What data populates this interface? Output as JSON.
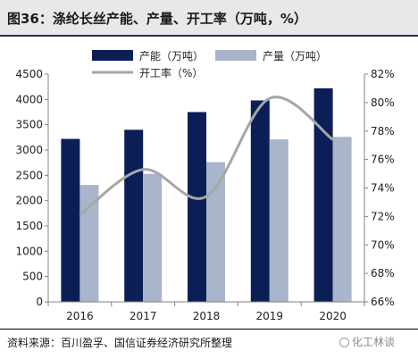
{
  "title": "图36：涤纶长丝产能、产量、开工率（万吨，%）",
  "source": "资料来源：百川盈孚、国信证券经济研究所整理",
  "watermark": "化工林谈",
  "colors": {
    "capacity": "#0b1f56",
    "output": "#a8b5cb",
    "rate": "#a6a6a6",
    "axis": "#808080"
  },
  "chart_data": {
    "type": "bar",
    "categories": [
      "2016",
      "2017",
      "2018",
      "2019",
      "2020"
    ],
    "series": [
      {
        "name": "产能（万吨）",
        "type": "bar",
        "axis": "left",
        "values": [
          3220,
          3400,
          3750,
          3980,
          4220
        ]
      },
      {
        "name": "产量（万吨）",
        "type": "bar",
        "axis": "left",
        "values": [
          2310,
          2530,
          2760,
          3210,
          3260
        ]
      },
      {
        "name": "开工率（%）",
        "type": "line",
        "axis": "right",
        "smooth": true,
        "values": [
          72.1,
          75.3,
          73.4,
          80.3,
          77.4
        ]
      }
    ],
    "y_left": {
      "min": 0,
      "max": 4500,
      "step": 500,
      "ticks": [
        "0",
        "500",
        "1000",
        "1500",
        "2000",
        "2500",
        "3000",
        "3500",
        "4000",
        "4500"
      ]
    },
    "y_right": {
      "min": 66,
      "max": 82,
      "step": 2,
      "ticks": [
        "66%",
        "68%",
        "70%",
        "72%",
        "74%",
        "76%",
        "78%",
        "80%",
        "82%"
      ]
    },
    "legend_position": "top",
    "grid": false
  }
}
